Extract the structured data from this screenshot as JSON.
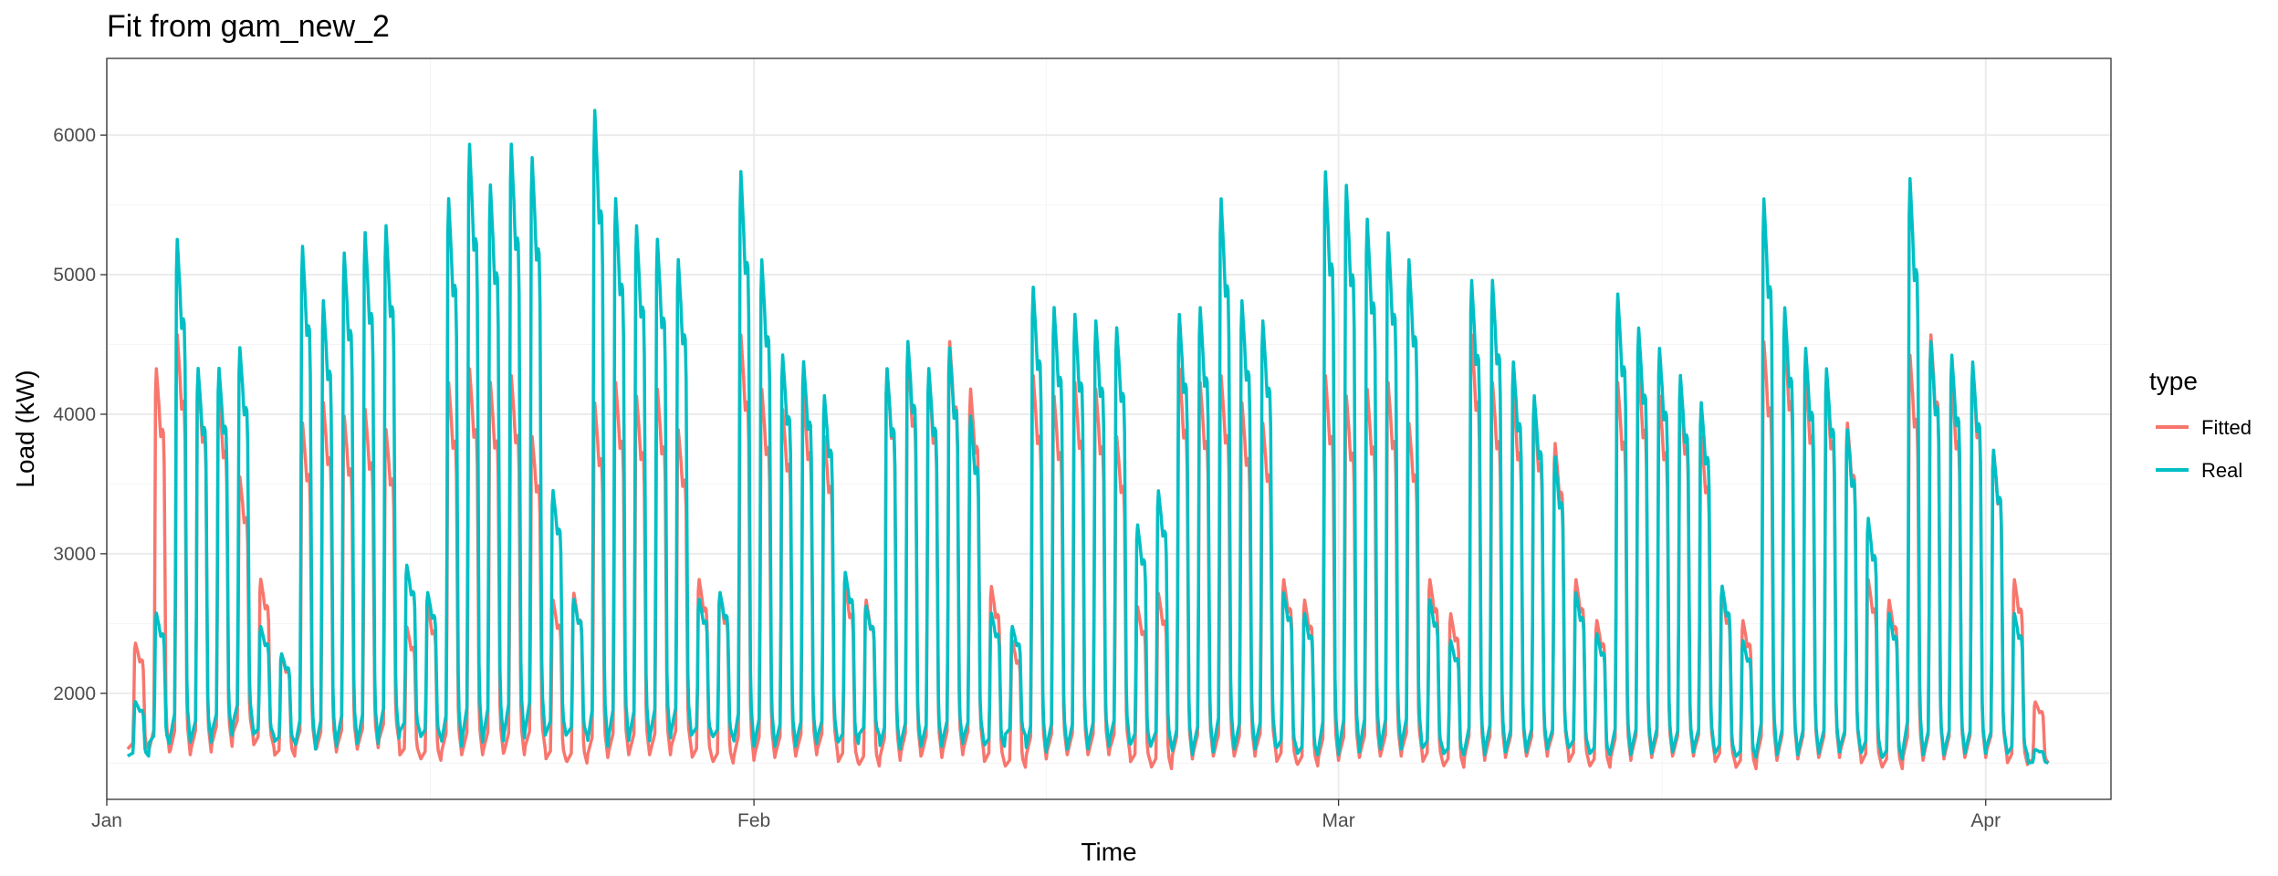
{
  "chart_data": {
    "type": "line",
    "title": "Fit from gam_new_2",
    "xlabel": "Time",
    "ylabel": "Load (kW)",
    "x_range": [
      "2021-01-01",
      "2021-04-07"
    ],
    "ylim": [
      1240,
      6550
    ],
    "y_ticks": [
      2000,
      3000,
      4000,
      5000,
      6000
    ],
    "x_ticks": [
      {
        "label": "Jan",
        "date": "2021-01-01"
      },
      {
        "label": "Feb",
        "date": "2021-02-01"
      },
      {
        "label": "Mar",
        "date": "2021-03-01"
      },
      {
        "label": "Apr",
        "date": "2021-04-01"
      }
    ],
    "series_start": "2021-01-02",
    "grid": true,
    "legend": {
      "title": "type",
      "position": "right"
    },
    "series": [
      {
        "name": "Fitted",
        "color": "#F8766D",
        "daily_peaks": [
          2380,
          4400,
          4650,
          4350,
          4200,
          3600,
          2850,
          2300,
          4000,
          4150,
          4050,
          4100,
          3950,
          2500,
          2650,
          4300,
          4400,
          4300,
          4350,
          3900,
          2700,
          2750,
          4150,
          4300,
          4200,
          4250,
          3950,
          2850,
          2750,
          4650,
          4250,
          4100,
          4200,
          3900,
          2800,
          2700,
          4400,
          4500,
          4350,
          4600,
          4250,
          2800,
          2400,
          4350,
          4200,
          4300,
          4250,
          3900,
          2650,
          2750,
          4400,
          4300,
          4350,
          4150,
          4000,
          2850,
          2700,
          4350,
          4200,
          4250,
          4300,
          4000,
          2850,
          2600,
          4650,
          4300,
          4200,
          4100,
          3850,
          2850,
          2550,
          4300,
          4400,
          4200,
          4250,
          3900,
          2750,
          2550,
          4600,
          4650,
          4350,
          4300,
          4000,
          2850,
          2700,
          4500,
          4650,
          4300,
          4400,
          3800,
          2850,
          1950
        ],
        "daily_troughs": [
          1600,
          1580,
          1560,
          1580,
          1620,
          1700,
          1620,
          1550,
          1600,
          1580,
          1600,
          1610,
          1650,
          1550,
          1520,
          1560,
          1560,
          1570,
          1560,
          1600,
          1520,
          1500,
          1540,
          1560,
          1560,
          1560,
          1600,
          1530,
          1500,
          1520,
          1540,
          1550,
          1560,
          1580,
          1500,
          1480,
          1520,
          1550,
          1540,
          1560,
          1580,
          1500,
          1470,
          1530,
          1560,
          1560,
          1560,
          1580,
          1500,
          1460,
          1530,
          1550,
          1550,
          1550,
          1580,
          1500,
          1480,
          1520,
          1540,
          1550,
          1550,
          1580,
          1500,
          1470,
          1520,
          1540,
          1550,
          1550,
          1580,
          1500,
          1470,
          1520,
          1540,
          1550,
          1550,
          1570,
          1500,
          1460,
          1520,
          1530,
          1540,
          1540,
          1570,
          1490,
          1460,
          1520,
          1530,
          1540,
          1540,
          1570,
          1490,
          1500
        ]
      },
      {
        "name": "Real",
        "color": "#00BFC4",
        "daily_peaks": [
          1950,
          2600,
          5350,
          4400,
          4400,
          4550,
          2500,
          2300,
          5300,
          4900,
          5250,
          5400,
          5450,
          2950,
          2750,
          5650,
          6050,
          5750,
          6050,
          5950,
          3500,
          2700,
          6300,
          5650,
          5450,
          5350,
          5200,
          2700,
          2750,
          5850,
          5200,
          4500,
          4450,
          4200,
          2900,
          2650,
          4400,
          4600,
          4400,
          4550,
          4050,
          2600,
          2500,
          5000,
          4850,
          4800,
          4750,
          4700,
          3250,
          3500,
          4800,
          4850,
          5650,
          4900,
          4750,
          2750,
          2600,
          5850,
          5750,
          5500,
          5400,
          5200,
          2700,
          2400,
          5050,
          5050,
          4450,
          4200,
          3750,
          2750,
          2450,
          4950,
          4700,
          4550,
          4350,
          4150,
          2800,
          2400,
          5650,
          4850,
          4550,
          4400,
          3950,
          3300,
          2600,
          5800,
          4600,
          4500,
          4450,
          3800,
          2600,
          1600
        ],
        "daily_troughs": [
          1550,
          1640,
          1650,
          1650,
          1700,
          1760,
          1700,
          1650,
          1600,
          1620,
          1640,
          1640,
          1680,
          1720,
          1680,
          1620,
          1650,
          1660,
          1680,
          1700,
          1700,
          1700,
          1620,
          1660,
          1660,
          1680,
          1700,
          1700,
          1680,
          1620,
          1620,
          1620,
          1640,
          1660,
          1640,
          1700,
          1600,
          1620,
          1620,
          1640,
          1660,
          1620,
          1700,
          1580,
          1600,
          1600,
          1620,
          1640,
          1620,
          1620,
          1560,
          1580,
          1600,
          1600,
          1620,
          1600,
          1560,
          1560,
          1580,
          1600,
          1600,
          1620,
          1600,
          1560,
          1560,
          1580,
          1580,
          1600,
          1620,
          1600,
          1560,
          1560,
          1570,
          1580,
          1580,
          1600,
          1560,
          1540,
          1560,
          1560,
          1570,
          1580,
          1600,
          1560,
          1530,
          1560,
          1560,
          1570,
          1570,
          1600,
          1560,
          1500
        ]
      }
    ]
  }
}
